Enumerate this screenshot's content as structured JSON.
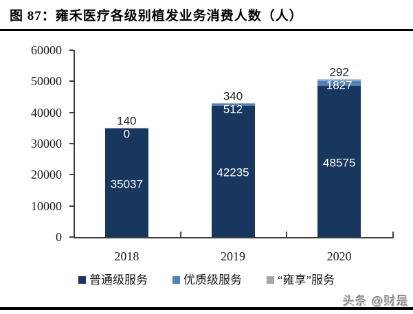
{
  "header": {
    "title": "图 87：雍禾医疗各级别植发业务消费人数（人）"
  },
  "watermark": {
    "text": "头条 @财是"
  },
  "chart_data": {
    "type": "bar",
    "stacked": true,
    "title": "图 87：雍禾医疗各级别植发业务消费人数（人）",
    "categories": [
      "2018",
      "2019",
      "2020"
    ],
    "series": [
      {
        "name": "普通级服务",
        "color": "#17375e",
        "label_color": "#ffffff",
        "values": [
          35037,
          42235,
          48575
        ]
      },
      {
        "name": "优质级服务",
        "color": "#4f81bd",
        "label_color": "#ffffff",
        "values": [
          0,
          512,
          1827
        ]
      },
      {
        "name": "“雍享”服务",
        "color": "#aab3c0",
        "legend_color": "#a6a6a6",
        "label_color": "#1f1f1f",
        "values": [
          140,
          340,
          292
        ]
      }
    ],
    "ylim": [
      0,
      60000
    ],
    "yticks": [
      0,
      10000,
      20000,
      30000,
      40000,
      50000,
      60000
    ],
    "grid": false,
    "legend_position": "bottom",
    "data_labels": true,
    "axis_color": "#3f3f3f"
  }
}
